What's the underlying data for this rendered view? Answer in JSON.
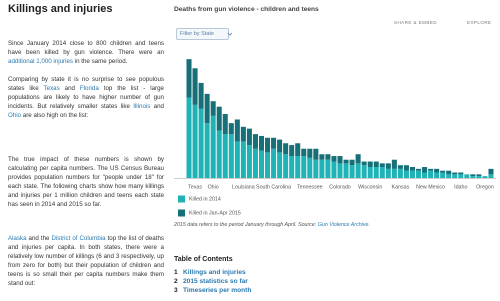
{
  "article": {
    "title": "Killings and injuries",
    "paragraphs": [
      [
        "Since January 2014 close to 800 children and teens have been killed by gun violence. There were an ",
        {
          "text": "additional 1,000 injuries",
          "link": true
        },
        " in the same period."
      ],
      [
        "Comparing by state it is no surprise to see populous states like ",
        {
          "text": "Texas",
          "link": true
        },
        " and ",
        {
          "text": "Florida",
          "link": true
        },
        " top the list - large populations are likely to have higher number of gun incidents. But relatively smaller states like ",
        {
          "text": "Illinois",
          "link": true
        },
        " and ",
        {
          "text": "Ohio",
          "link": true
        },
        " are also high on the list:"
      ],
      [
        "The true impact of these numbers is shown by calculating per capita numbers. The US Census Bureau provides population numbers for \"people under 18\" for each state. The following charts show how many killings and injuries per 1 million children and teens each state has seen in 2014 and 2015 so far."
      ],
      [
        {
          "text": "Alaska",
          "link": true
        },
        " and the ",
        {
          "text": "District of Columbia",
          "link": true
        },
        " top the list of deaths and injuries per capita. In both states, there were a relatively low number of killings (6 and 3 respectively, up from zero for both) but their population of children and teens is so small their per capita numbers make them stand out:"
      ]
    ]
  },
  "toolbar": {
    "share": "SHARE & EMBED",
    "explore": "EXPLORE",
    "filter": "Filter by State"
  },
  "chart_data": {
    "type": "stacked-bar",
    "title": "Deaths from gun violence - children and teens",
    "categories": [
      null,
      "Texas",
      null,
      null,
      "Ohio",
      null,
      null,
      null,
      null,
      "Louisiana",
      null,
      null,
      null,
      null,
      "South Carolina",
      null,
      null,
      null,
      null,
      null,
      "Tennessee",
      null,
      null,
      null,
      null,
      "Colorado",
      null,
      null,
      null,
      null,
      "Wisconsin",
      null,
      null,
      null,
      null,
      "Kansas",
      null,
      null,
      null,
      null,
      "New Mexico",
      null,
      null,
      null,
      null,
      "Idaho",
      null,
      null,
      null,
      "Oregon",
      null
    ],
    "series": [
      {
        "name": "Killed in 2014",
        "color": "#1fb3b6",
        "values": [
          44,
          40,
          38,
          30,
          34,
          26,
          24,
          24,
          20,
          20,
          18,
          16,
          15,
          14,
          16,
          14,
          13,
          12,
          12,
          12,
          11,
          10,
          10,
          10,
          9,
          8,
          8,
          7,
          8,
          7,
          6,
          6,
          6,
          5,
          5,
          5,
          4,
          4,
          4,
          3,
          4,
          3,
          3,
          2,
          2,
          2,
          2,
          1,
          1,
          1,
          2
        ]
      },
      {
        "name": "Killed in Jan-Apr 2015",
        "color": "#176f78",
        "values": [
          21,
          20,
          14,
          16,
          8,
          13,
          11,
          6,
          12,
          8,
          9,
          8,
          8,
          8,
          6,
          7,
          6,
          6,
          7,
          4,
          5,
          6,
          3,
          3,
          3,
          4,
          2,
          3,
          5,
          2,
          3,
          3,
          2,
          3,
          5,
          2,
          3,
          2,
          1,
          3,
          1,
          2,
          1,
          2,
          1,
          1,
          0,
          1,
          1,
          0,
          3
        ]
      }
    ],
    "ylim": [
      0,
      70
    ]
  },
  "chart_note": [
    "2015 data refers to the period January through April. Source: ",
    {
      "text": "Gun Violence Archive.",
      "link": true
    }
  ],
  "toc": {
    "title": "Table of Contents",
    "items": [
      {
        "number": 1,
        "title": "Killings and injuries"
      },
      {
        "number": 2,
        "title": "2015 statistics so far"
      },
      {
        "number": 3,
        "title": "Timeseries per month"
      }
    ]
  }
}
